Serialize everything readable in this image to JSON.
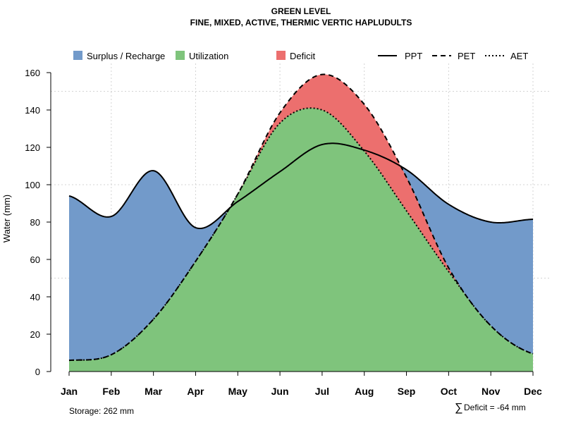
{
  "chart_data": {
    "type": "area",
    "title": "GREEN LEVEL",
    "subtitle": "FINE, MIXED, ACTIVE, THERMIC VERTIC HAPLUDULTS",
    "xlabel": "",
    "ylabel": "Water (mm)",
    "ylim": [
      0,
      160
    ],
    "yticks": [
      0,
      20,
      40,
      60,
      80,
      100,
      120,
      140,
      160
    ],
    "grid": true,
    "categories": [
      "Jan",
      "Feb",
      "Mar",
      "Apr",
      "May",
      "Jun",
      "Jul",
      "Aug",
      "Sep",
      "Oct",
      "Nov",
      "Dec"
    ],
    "series": [
      {
        "name": "PPT",
        "style": "solid",
        "values": [
          94,
          83,
          107.5,
          77,
          91,
          107,
          121.5,
          118.5,
          108,
          89.5,
          80,
          81.5
        ]
      },
      {
        "name": "PET",
        "style": "dashed",
        "values": [
          6,
          9,
          28,
          59,
          95,
          138.5,
          159,
          143,
          104,
          55.5,
          24.5,
          9.5
        ]
      },
      {
        "name": "AET",
        "style": "dotted",
        "values": [
          6,
          9,
          28,
          59,
          95,
          133,
          140,
          118,
          86,
          53.5,
          24.5,
          9.5
        ]
      }
    ],
    "legend": {
      "placement": "top",
      "fills": [
        {
          "name": "Surplus / Recharge",
          "color": "#729ACA"
        },
        {
          "name": "Utilization",
          "color": "#7FC47C"
        },
        {
          "name": "Deficit",
          "color": "#EC6F6E"
        }
      ]
    },
    "annotations": {
      "storage": "Storage: 262 mm",
      "deficit_symbol": "∑",
      "deficit": "Deficit = -64 mm"
    }
  }
}
